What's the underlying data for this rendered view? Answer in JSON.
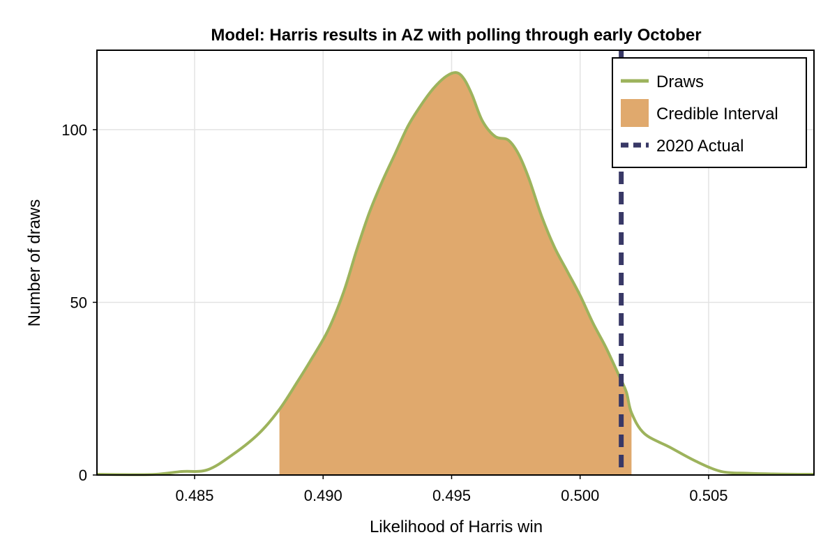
{
  "chart_data": {
    "type": "area",
    "title": "Model: Harris results in AZ with polling through early October",
    "xlabel": "Likelihood of Harris win",
    "ylabel": "Number of draws",
    "xlim": [
      0.4812,
      0.5091
    ],
    "ylim": [
      0,
      123
    ],
    "x_ticks": [
      0.485,
      0.49,
      0.495,
      0.5,
      0.505
    ],
    "x_tick_labels": [
      "0.485",
      "0.490",
      "0.495",
      "0.500",
      "0.505"
    ],
    "y_ticks": [
      0,
      50,
      100
    ],
    "y_tick_labels": [
      "0",
      "50",
      "100"
    ],
    "grid": true,
    "legend_position": "top-right",
    "colors": {
      "draws": "#9db35c",
      "credible_interval": "#e0a96d",
      "actual_2020": "#383866"
    },
    "series": [
      {
        "name": "Draws",
        "kind": "line",
        "x": [
          0.4812,
          0.4825,
          0.4835,
          0.4845,
          0.4855,
          0.4865,
          0.4875,
          0.4883,
          0.489,
          0.4895,
          0.4902,
          0.4908,
          0.4913,
          0.4918,
          0.4923,
          0.4928,
          0.4933,
          0.4938,
          0.4943,
          0.4948,
          0.4952,
          0.4955,
          0.4958,
          0.4962,
          0.4967,
          0.4972,
          0.4976,
          0.498,
          0.4985,
          0.499,
          0.4995,
          0.5,
          0.5005,
          0.501,
          0.5015,
          0.5018,
          0.502,
          0.5025,
          0.5035,
          0.5045,
          0.5055,
          0.5065,
          0.5075,
          0.5085,
          0.5091
        ],
        "y": [
          0.2,
          0.1,
          0.2,
          1,
          1.5,
          6,
          12,
          19,
          27,
          33,
          42,
          53,
          65,
          76,
          85,
          93,
          101,
          107,
          112,
          115.5,
          116.5,
          114.5,
          110,
          102.5,
          98,
          97,
          93,
          86,
          75,
          66,
          59,
          52,
          44,
          37,
          29,
          24,
          18,
          12,
          8,
          4,
          1,
          0.5,
          0.3,
          0.2,
          0.2
        ]
      },
      {
        "name": "Credible Interval",
        "kind": "band",
        "x_range": [
          0.4883,
          0.502
        ]
      },
      {
        "name": "2020 Actual",
        "kind": "vline",
        "x": 0.5016
      }
    ]
  }
}
